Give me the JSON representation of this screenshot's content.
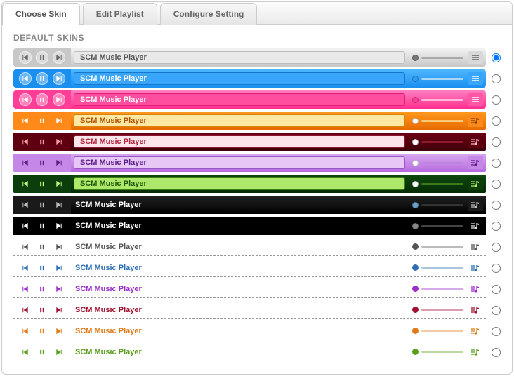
{
  "tabs": {
    "choose_skin": "Choose Skin",
    "edit_playlist": "Edit Playlist",
    "configure_setting": "Configure Setting"
  },
  "section_title": "DEFAULT SKINS",
  "player_label": "SCM Music Player",
  "skins": [
    {
      "style": "rounded",
      "bg_from": "#f2f2f2",
      "bg_to": "#c8c8c8",
      "ctrl_bg": "#c8c8c8",
      "btn_fill": "#666666",
      "title_bg": "#e9e9e9",
      "title_border": "#bdbdbd",
      "title_color": "#555555",
      "vol_dot": "#777777",
      "vol_track": "#aaaaaa",
      "list_bg": "#d9d9d9",
      "list_color": "#666666",
      "selected": true
    },
    {
      "style": "rounded",
      "bg_from": "#4fb6ff",
      "bg_to": "#1a8ff0",
      "ctrl_bg": "#1a8ff0",
      "btn_fill": "#ffffff",
      "title_bg": "#3aa6fb",
      "title_border": "#1478cc",
      "title_color": "#ffffff",
      "vol_dot": "#2f9af1",
      "vol_track": "#a9d7fb",
      "list_bg": "#3aa6fb",
      "list_color": "#ffffff",
      "selected": false
    },
    {
      "style": "rounded",
      "bg_from": "#ff7fc0",
      "bg_to": "#ff2d8e",
      "ctrl_bg": "#ff3e97",
      "btn_fill": "#ffffff",
      "title_bg": "#ff4da0",
      "title_border": "#e21e76",
      "title_color": "#ffffff",
      "vol_dot": "#ff3e97",
      "vol_track": "#ffb9db",
      "list_bg": "#ff57a6",
      "list_color": "#ffffff",
      "selected": false
    },
    {
      "style": "angular",
      "bg_from": "#ff9a1f",
      "bg_to": "#e76b00",
      "ctrl_bg": "#ff8a1a",
      "btn_fill": "#ffffff",
      "title_bg": "#ffe8a3",
      "title_border": "#d98200",
      "title_color": "#b35000",
      "vol_dot": "#ffffff",
      "vol_track": "#ffc97a",
      "list_bg": "#ff8a1a",
      "list_color": "#7a3a00",
      "selected": false
    },
    {
      "style": "angular",
      "bg_from": "#6e0012",
      "bg_to": "#3e000a",
      "ctrl_bg": "#5f0010",
      "btn_fill": "#ff9aa8",
      "title_bg": "#fde6eb",
      "title_border": "#8b1a2e",
      "title_color": "#b0243c",
      "vol_dot": "#ffffff",
      "vol_track": "#8b1a2e",
      "list_bg": "#5f0010",
      "list_color": "#ffb7c3",
      "selected": false
    },
    {
      "style": "angular",
      "bg_from": "#d8a8f0",
      "bg_to": "#b86be0",
      "ctrl_bg": "#c587e8",
      "btn_fill": "#5d1d88",
      "title_bg": "#e6c7f6",
      "title_border": "#9a57c6",
      "title_color": "#5d1d88",
      "vol_dot": "#ffffff",
      "vol_track": "#bd85e0",
      "list_bg": "#c587e8",
      "list_color": "#5d1d88",
      "selected": false
    },
    {
      "style": "angular",
      "bg_from": "#0e4a0e",
      "bg_to": "#052b05",
      "ctrl_bg": "#0b3e0b",
      "btn_fill": "#b7ff7a",
      "title_bg": "#aee86a",
      "title_border": "#3d7a18",
      "title_color": "#215507",
      "vol_dot": "#ffffff",
      "vol_track": "#3d7a18",
      "list_bg": "#0b3e0b",
      "list_color": "#aee86a",
      "selected": false
    },
    {
      "style": "square",
      "bg_from": "#222222",
      "bg_to": "#000000",
      "ctrl_bg": "#1a1a1a",
      "btn_fill": "#bbbbbb",
      "title_bg": "transparent",
      "title_border": "transparent",
      "title_color": "#ffffff",
      "vol_dot": "#6aa0c8",
      "vol_track": "#333333",
      "list_bg": "#1a1a1a",
      "list_color": "#bbbbbb",
      "selected": false
    },
    {
      "style": "square",
      "bg_from": "#000000",
      "bg_to": "#000000",
      "ctrl_bg": "#000000",
      "btn_fill": "#ffffff",
      "title_bg": "transparent",
      "title_border": "transparent",
      "title_color": "#ffffff",
      "vol_dot": "#888888",
      "vol_track": "#444444",
      "list_bg": "#000000",
      "list_color": "#dddddd",
      "selected": false
    },
    {
      "style": "flat",
      "accent": "#555555",
      "selected": false
    },
    {
      "style": "flat",
      "accent": "#2e6fb5",
      "selected": false
    },
    {
      "style": "flat",
      "accent": "#9a2ecb",
      "selected": false
    },
    {
      "style": "flat",
      "accent": "#a01030",
      "selected": false
    },
    {
      "style": "flat",
      "accent": "#e07b1a",
      "selected": false
    },
    {
      "style": "flat",
      "accent": "#5a9e1e",
      "selected": false
    }
  ]
}
